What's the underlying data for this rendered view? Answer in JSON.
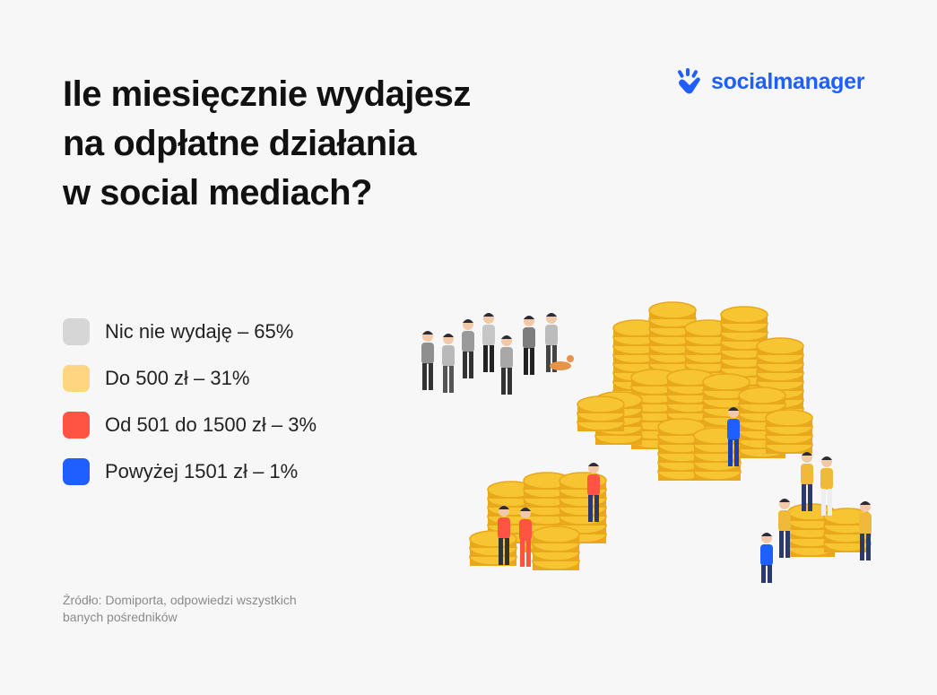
{
  "title_lines": [
    "Ile miesięcznie wydajesz",
    "na odpłatne działania",
    "w social mediach?"
  ],
  "brand": {
    "name": "socialmanager",
    "icon": "hand-logo-icon",
    "color": "#1f5fff"
  },
  "chart_data": {
    "type": "pie",
    "title": "Ile miesięcznie wydajesz na odpłatne działania w social mediach?",
    "categories": [
      "Nic nie wydaję",
      "Do 500 zł",
      "Od 501 do 1500 zł",
      "Powyżej 1501 zł"
    ],
    "values": [
      65,
      31,
      3,
      1
    ],
    "unit": "%",
    "colors": [
      "#d6d6d6",
      "#ffd57f",
      "#ff5343",
      "#1f5fff"
    ],
    "legend_labels": [
      "Nic nie wydaję – 65%",
      "Do 500 zł – 31%",
      "Od 501 do 1500 zł – 3%",
      "Powyżej 1501 zł – 1%"
    ],
    "legend_position": "left"
  },
  "source": "Źródło: Domiporta, odpowiedzi wszystkich banych pośredników",
  "illustration": {
    "icon": "coins-and-people-illustration",
    "coin_color": "#f7c531",
    "coin_edge_color": "#e9a81c"
  }
}
